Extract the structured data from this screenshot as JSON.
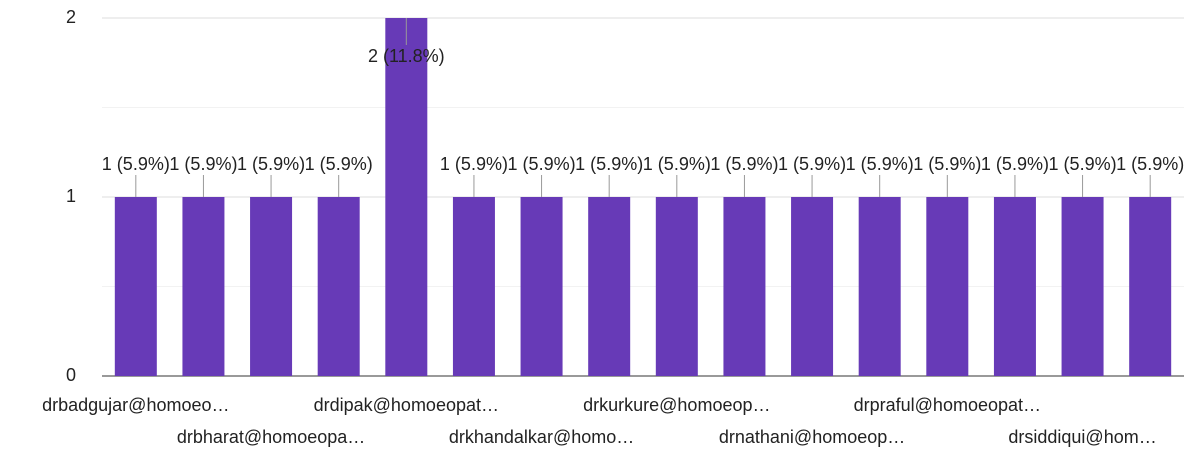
{
  "chart_data": {
    "type": "bar",
    "categories": [
      "drbadgujar@homoeo…",
      null,
      "drbharat@homoeopa…",
      null,
      "drdipak@homoeopat…",
      null,
      "drkhandalkar@homo…",
      null,
      "drkurkure@homoeop…",
      null,
      "drnathani@homoeop…",
      null,
      "drpraful@homoeopat…",
      null,
      "drsiddiqui@hom…",
      null
    ],
    "values": [
      1,
      1,
      1,
      1,
      2,
      1,
      1,
      1,
      1,
      1,
      1,
      1,
      1,
      1,
      1,
      1
    ],
    "value_labels": [
      "1 (5.9%)",
      "1 (5.9%)",
      "1 (5.9%)",
      "1 (5.9%)",
      "2 (11.8%)",
      "1 (5.9%)",
      "1 (5.9%)",
      "1 (5.9%)",
      "1 (5.9%)",
      "1 (5.9%)",
      "1 (5.9%)",
      "1 (5.9%)",
      "1 (5.9%)",
      "1 (5.9%)",
      "1 (5.9%)",
      "1 (5.9%)"
    ],
    "color": "#673ab7",
    "ylim": [
      0,
      2
    ],
    "yticks": [
      0,
      1,
      2
    ],
    "minor_yticks": [
      0.5,
      1.5
    ],
    "grid": true
  }
}
